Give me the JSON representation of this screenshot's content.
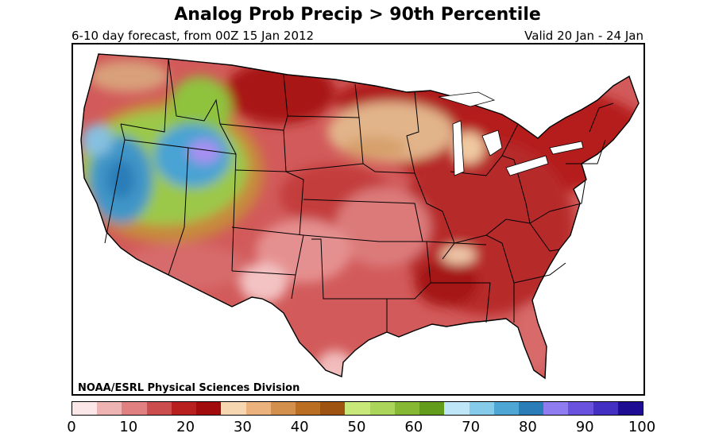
{
  "header": {
    "title": "Analog Prob Precip > 90th Percentile",
    "subtitle_left": "6-10 day forecast, from 00Z 15 Jan 2012",
    "subtitle_right": "Valid 20 Jan - 24 Jan"
  },
  "map": {
    "credit": "NOAA/ESRL Physical Sciences Division",
    "region": "Contiguous United States"
  },
  "colorbar": {
    "tick_labels": [
      "0",
      "10",
      "20",
      "30",
      "40",
      "50",
      "60",
      "70",
      "80",
      "90",
      "100"
    ],
    "colors": [
      "#fbe7e7",
      "#eeb3b3",
      "#e08080",
      "#cc4d4d",
      "#b81f1f",
      "#a10b0b",
      "#f6d7b2",
      "#ebb27e",
      "#d3904c",
      "#b96e22",
      "#9e5410",
      "#c9e87a",
      "#aad45a",
      "#86b833",
      "#629c1a",
      "#bfe6f6",
      "#86cbea",
      "#4ea6d5",
      "#2b7db8",
      "#8e7cf0",
      "#6a52df",
      "#4330c2",
      "#1e0d93"
    ]
  }
}
